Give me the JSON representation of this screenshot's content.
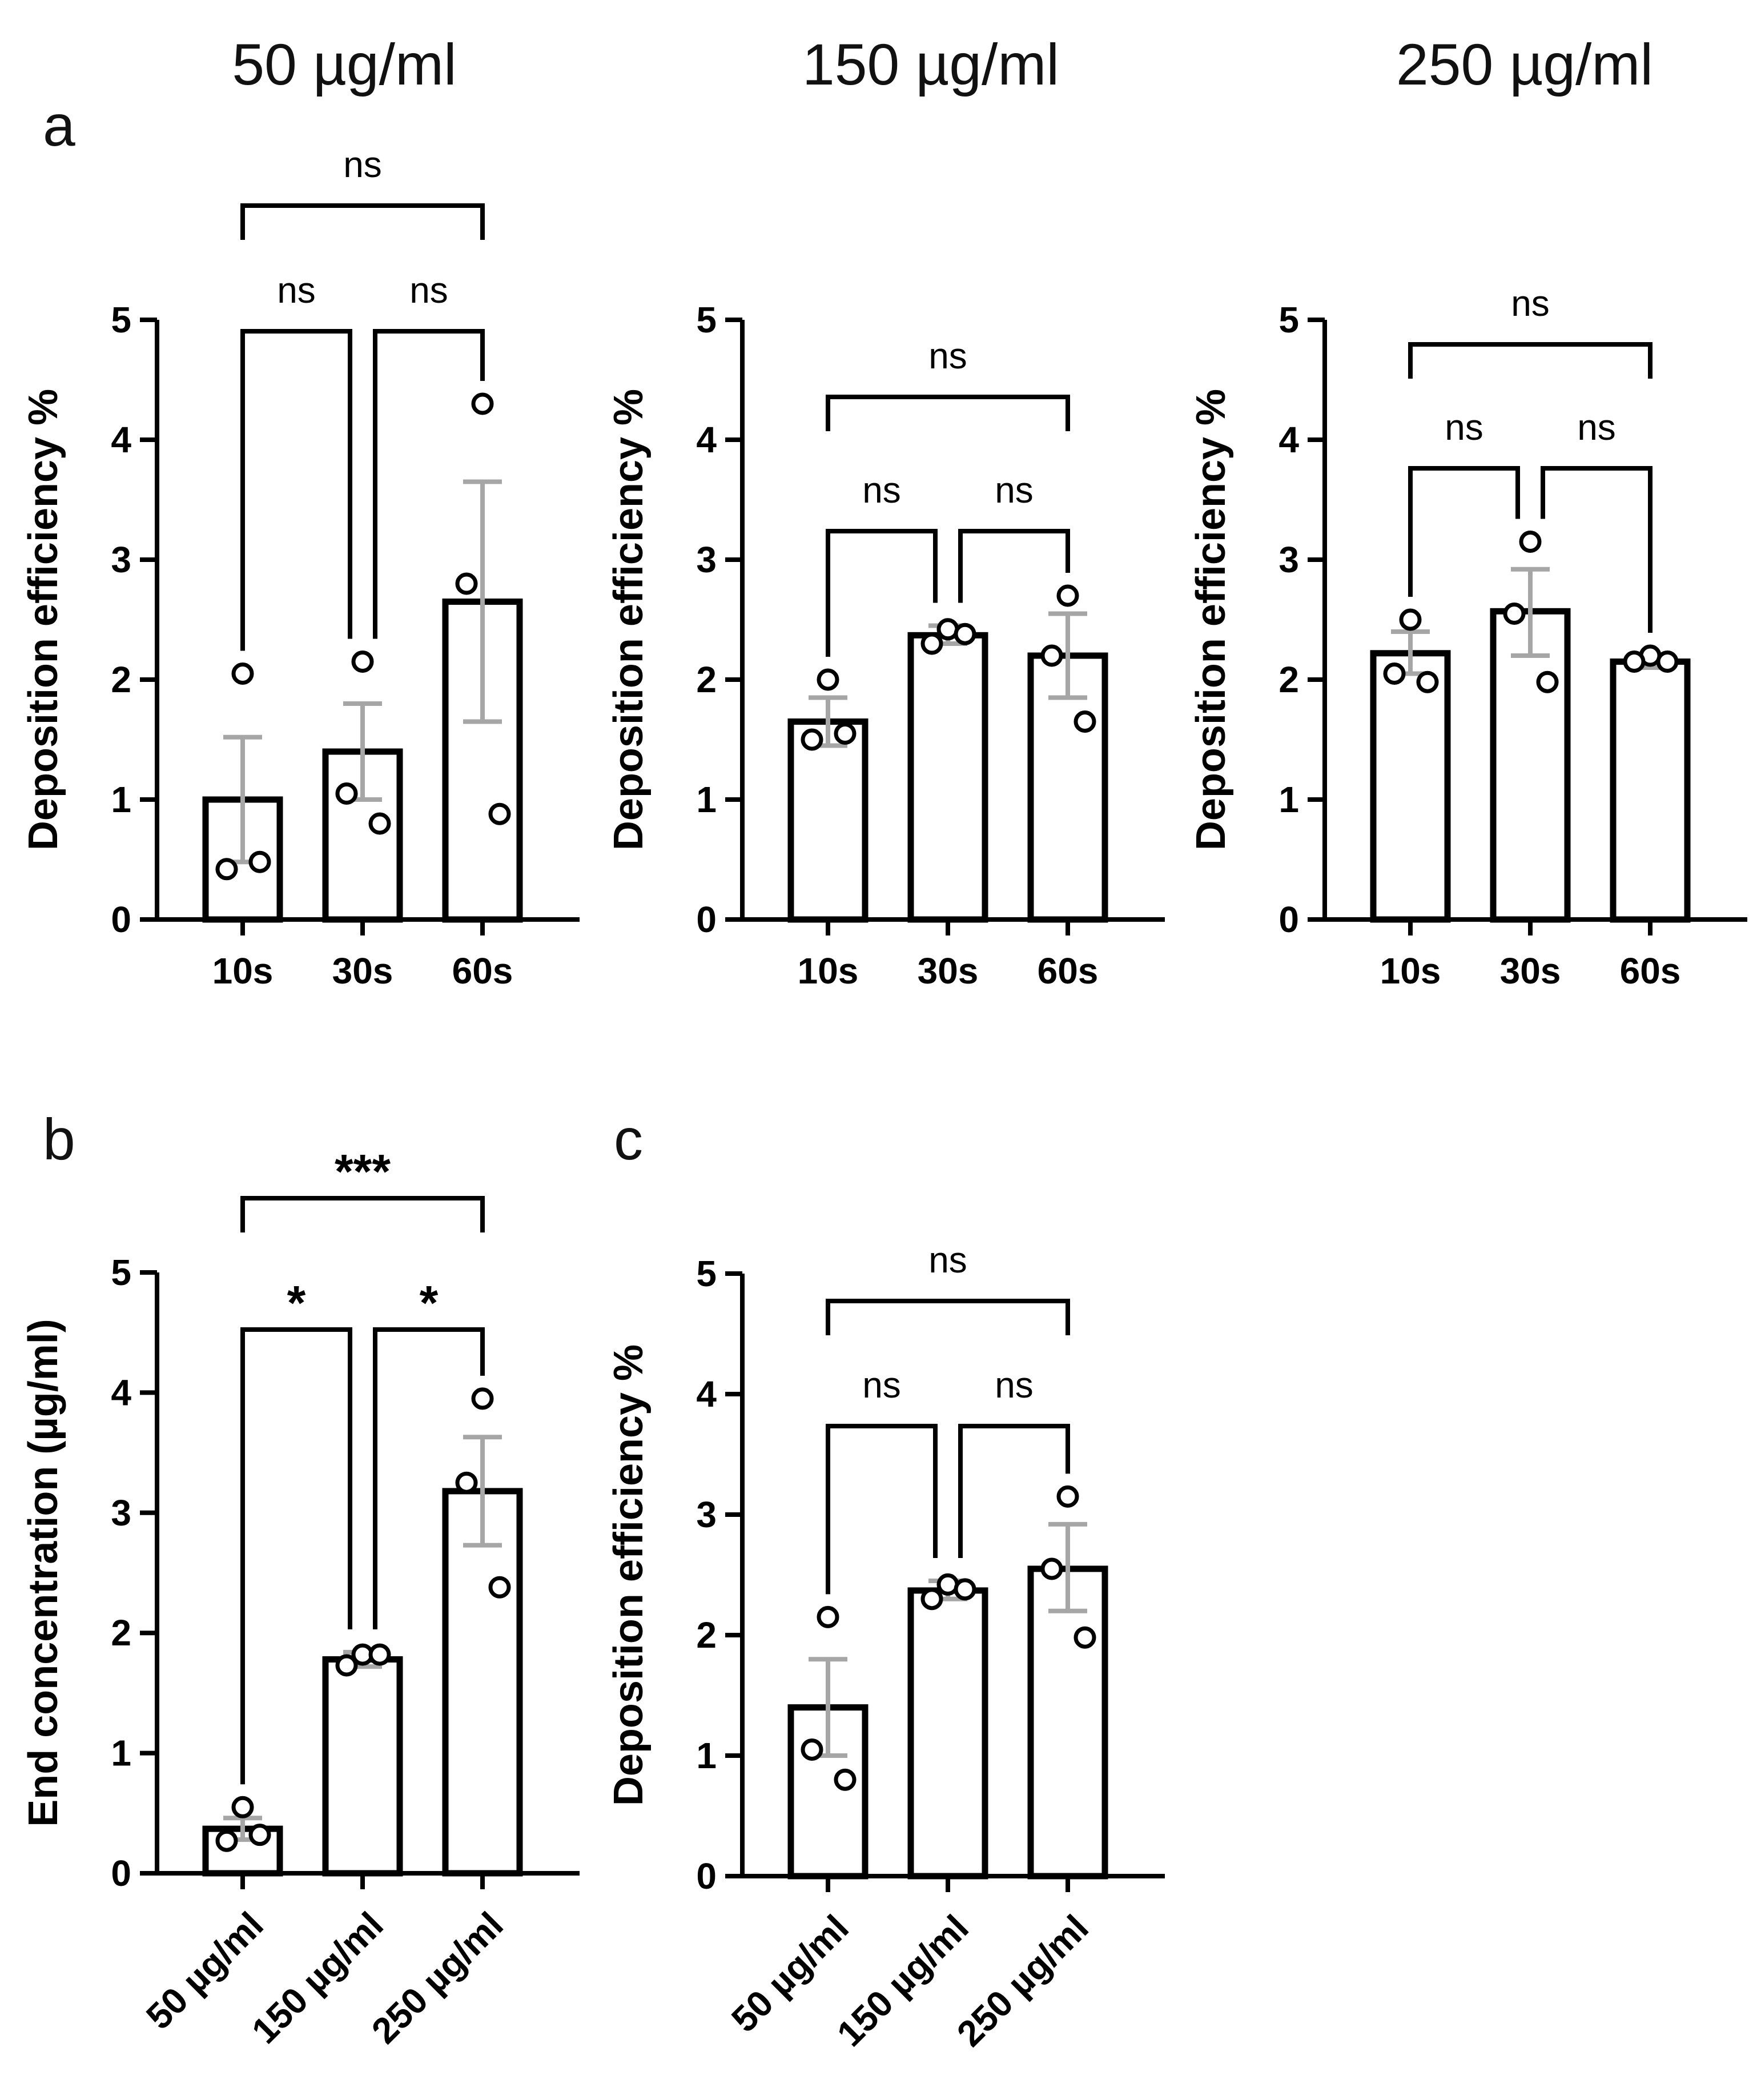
{
  "colors": {
    "bar_fill": "#ffffff",
    "bar_stroke": "#000000",
    "errorbar": "#a6a6a6",
    "axis": "#000000"
  },
  "column_titles": [
    "50 µg/ml",
    "150 µg/ml",
    "250 µg/ml"
  ],
  "panel_letters": [
    "a",
    "b",
    "c"
  ],
  "chart_data": [
    {
      "id": "a1",
      "panel": "a",
      "type": "bar",
      "title": "50 µg/ml",
      "ylabel": "Deposition efficiency %",
      "xlabel": "",
      "ylim": [
        0,
        5
      ],
      "yticks": [
        "0",
        "1",
        "2",
        "3",
        "4",
        "5"
      ],
      "categories": [
        "10s",
        "30s",
        "60s"
      ],
      "values": [
        1.0,
        1.4,
        2.65
      ],
      "errors": [
        [
          0.48,
          1.52
        ],
        [
          1.0,
          1.8
        ],
        [
          1.65,
          3.65
        ]
      ],
      "points": [
        [
          2.05,
          0.42,
          0.48
        ],
        [
          2.15,
          1.05,
          0.8
        ],
        [
          4.3,
          2.8,
          0.88
        ]
      ],
      "comparisons": [
        {
          "from": "10s",
          "to": "30s",
          "label": "ns"
        },
        {
          "from": "30s",
          "to": "60s",
          "label": "ns"
        },
        {
          "from": "10s",
          "to": "60s",
          "label": "ns"
        }
      ]
    },
    {
      "id": "a2",
      "panel": "a",
      "type": "bar",
      "title": "150 µg/ml",
      "ylabel": "Deposition efficiency %",
      "xlabel": "",
      "ylim": [
        0,
        5
      ],
      "yticks": [
        "0",
        "1",
        "2",
        "3",
        "4",
        "5"
      ],
      "categories": [
        "10s",
        "30s",
        "60s"
      ],
      "values": [
        1.65,
        2.37,
        2.2
      ],
      "errors": [
        [
          1.45,
          1.85
        ],
        [
          2.3,
          2.45
        ],
        [
          1.85,
          2.55
        ]
      ],
      "points": [
        [
          2.0,
          1.5,
          1.55
        ],
        [
          2.42,
          2.3,
          2.38
        ],
        [
          2.7,
          2.2,
          1.65
        ]
      ],
      "comparisons": [
        {
          "from": "10s",
          "to": "30s",
          "label": "ns"
        },
        {
          "from": "30s",
          "to": "60s",
          "label": "ns"
        },
        {
          "from": "10s",
          "to": "60s",
          "label": "ns"
        }
      ]
    },
    {
      "id": "a3",
      "panel": "a",
      "type": "bar",
      "title": "250 µg/ml",
      "ylabel": "Deposition efficiency %",
      "xlabel": "",
      "ylim": [
        0,
        5
      ],
      "yticks": [
        "0",
        "1",
        "2",
        "3",
        "4",
        "5"
      ],
      "categories": [
        "10s",
        "30s",
        "60s"
      ],
      "values": [
        2.22,
        2.57,
        2.15
      ],
      "errors": [
        [
          2.05,
          2.4
        ],
        [
          2.2,
          2.92
        ],
        [
          2.1,
          2.2
        ]
      ],
      "points": [
        [
          2.5,
          2.05,
          1.98
        ],
        [
          3.15,
          2.55,
          1.98
        ],
        [
          2.2,
          2.15,
          2.15
        ]
      ],
      "comparisons": [
        {
          "from": "10s",
          "to": "30s",
          "label": "ns"
        },
        {
          "from": "30s",
          "to": "60s",
          "label": "ns"
        },
        {
          "from": "10s",
          "to": "60s",
          "label": "ns"
        }
      ]
    },
    {
      "id": "b",
      "panel": "b",
      "type": "bar",
      "title": "",
      "ylabel": "End concentration (µg/ml)",
      "xlabel": "",
      "ylim": [
        0,
        5
      ],
      "yticks": [
        "0",
        "1",
        "2",
        "3",
        "4",
        "5"
      ],
      "categories": [
        "50 µg/ml",
        "150 µg/ml",
        "250 µg/ml"
      ],
      "values": [
        0.37,
        1.78,
        3.18
      ],
      "errors": [
        [
          0.28,
          0.46
        ],
        [
          1.72,
          1.84
        ],
        [
          2.73,
          3.63
        ]
      ],
      "points": [
        [
          0.55,
          0.27,
          0.32
        ],
        [
          1.82,
          1.73,
          1.82
        ],
        [
          3.95,
          3.25,
          2.38
        ]
      ],
      "comparisons": [
        {
          "from": "50 µg/ml",
          "to": "150 µg/ml",
          "label": "*"
        },
        {
          "from": "150 µg/ml",
          "to": "250 µg/ml",
          "label": "*"
        },
        {
          "from": "50 µg/ml",
          "to": "250 µg/ml",
          "label": "***"
        }
      ]
    },
    {
      "id": "c",
      "panel": "c",
      "type": "bar",
      "title": "",
      "ylabel": "Deposition efficiency %",
      "xlabel": "",
      "ylim": [
        0,
        5
      ],
      "yticks": [
        "0",
        "1",
        "2",
        "3",
        "4",
        "5"
      ],
      "categories": [
        "50 µg/ml",
        "150 µg/ml",
        "250 µg/ml"
      ],
      "values": [
        1.4,
        2.37,
        2.55
      ],
      "errors": [
        [
          1.0,
          1.8
        ],
        [
          2.3,
          2.45
        ],
        [
          2.2,
          2.92
        ]
      ],
      "points": [
        [
          2.15,
          1.05,
          0.8
        ],
        [
          2.42,
          2.3,
          2.38
        ],
        [
          3.15,
          2.55,
          1.98
        ]
      ],
      "comparisons": [
        {
          "from": "50 µg/ml",
          "to": "150 µg/ml",
          "label": "ns"
        },
        {
          "from": "150 µg/ml",
          "to": "250 µg/ml",
          "label": "ns"
        },
        {
          "from": "50 µg/ml",
          "to": "250 µg/ml",
          "label": "ns"
        }
      ]
    }
  ]
}
